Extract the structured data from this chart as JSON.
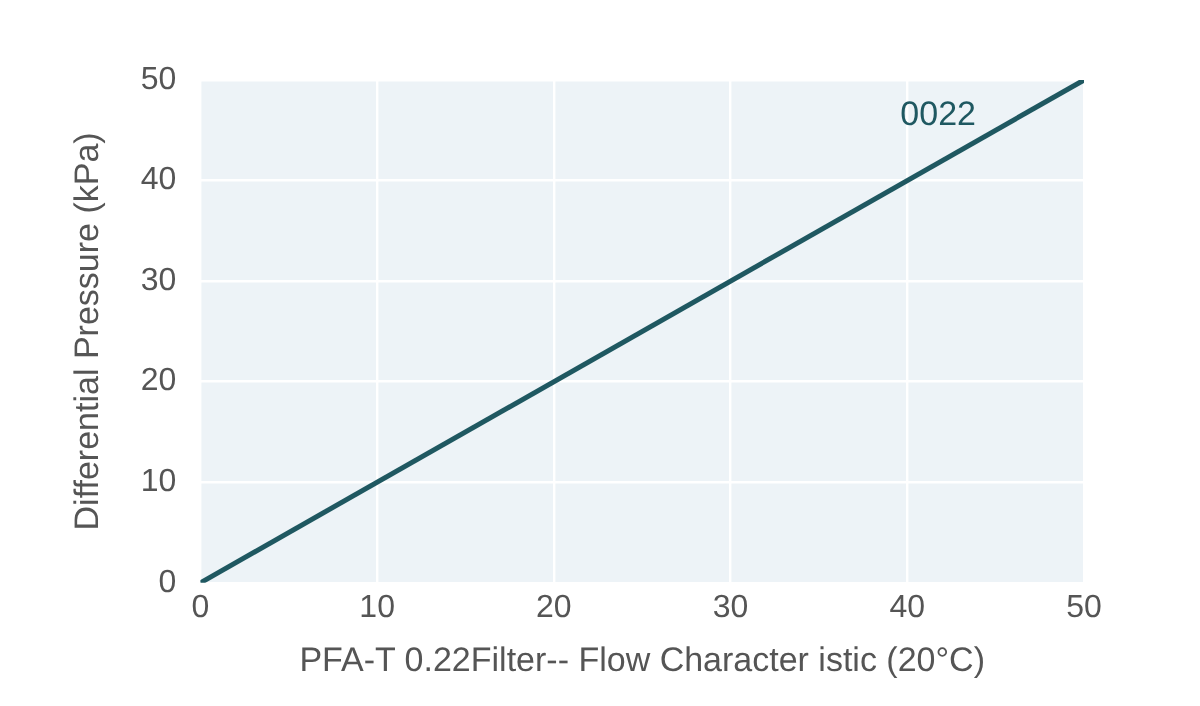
{
  "chart_data": {
    "type": "line",
    "xlabel": "PFA-T 0.22Filter-- Flow Character istic (20°C)",
    "ylabel": "Differential Pressure (kPa)",
    "x": [
      0,
      50
    ],
    "series": [
      {
        "name": "0022",
        "color": "#1f5861",
        "values": [
          0,
          50
        ]
      }
    ],
    "xlim": [
      0,
      50
    ],
    "ylim": [
      0,
      50
    ],
    "xticks": [
      0,
      10,
      20,
      30,
      40,
      50
    ],
    "yticks": [
      0,
      10,
      20,
      30,
      40,
      50
    ],
    "grid": true,
    "legend": false,
    "marker": "none",
    "line_style": "solid"
  }
}
